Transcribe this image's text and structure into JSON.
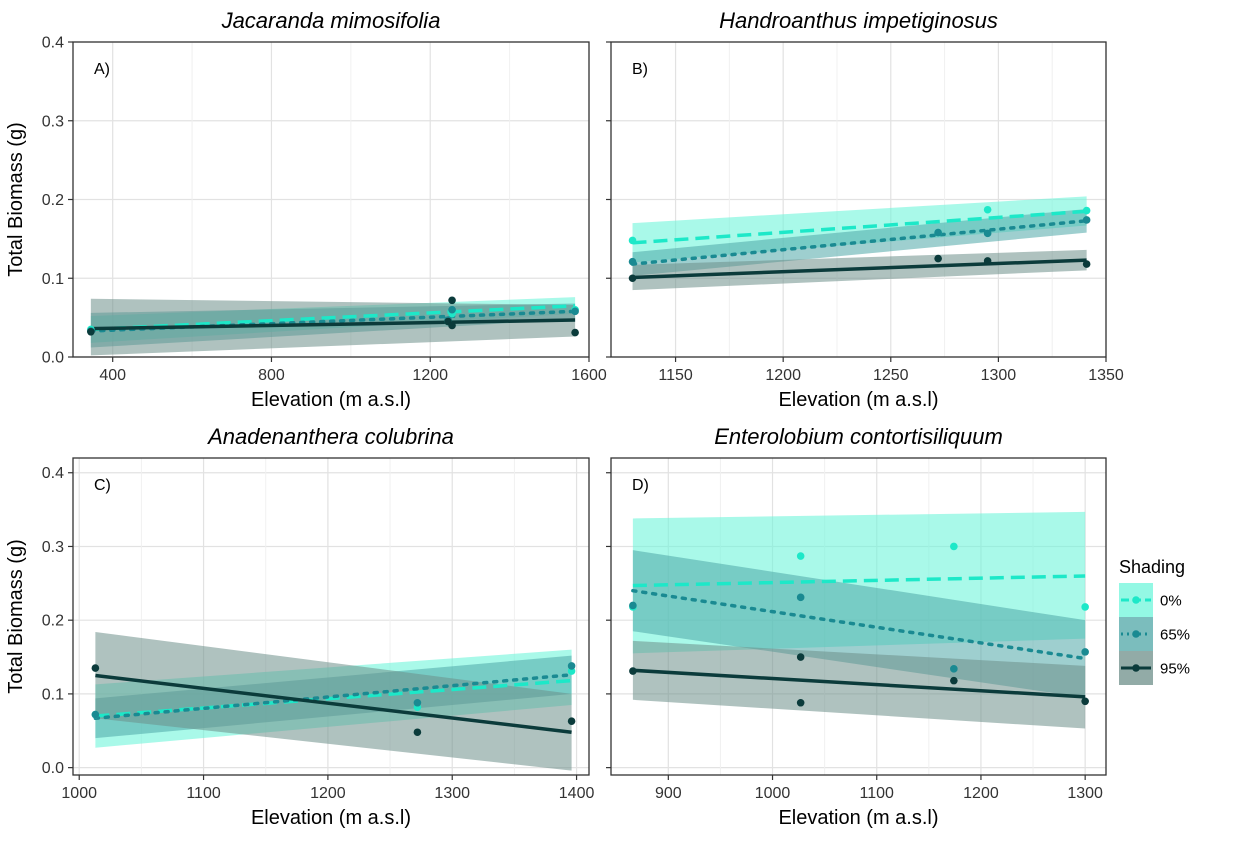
{
  "chart_data": [
    {
      "type": "line",
      "panel_label": "A)",
      "title": "Jacaranda mimosifolia",
      "xlabel": "Elevation (m a.s.l)",
      "ylabel": "Total Biomass (g)",
      "xlim": [
        300,
        1600
      ],
      "ylim": [
        0,
        0.4
      ],
      "xticks": [
        400,
        800,
        1200,
        1600
      ],
      "yticks": [
        0.0,
        0.1,
        0.2,
        0.3,
        0.4
      ],
      "ytick_labels": [
        "0.0",
        "0.1",
        "0.2",
        "0.3",
        "0.4"
      ],
      "show_y_tick_labels": true,
      "grid": true,
      "series": [
        {
          "name": "0%",
          "points": [
            [
              345,
              0.035
            ],
            [
              1245,
              0.045
            ],
            [
              1255,
              0.055
            ],
            [
              1565,
              0.06
            ]
          ],
          "fit": {
            "x": [
              345,
              1565
            ],
            "y": [
              0.035,
              0.065
            ]
          },
          "band": {
            "lower": [
              0.018,
              0.055
            ],
            "upper": [
              0.052,
              0.076
            ]
          }
        },
        {
          "name": "65%",
          "points": [
            [
              345,
              0.033
            ],
            [
              1245,
              0.047
            ],
            [
              1255,
              0.06
            ],
            [
              1565,
              0.058
            ]
          ],
          "fit": {
            "x": [
              345,
              1565
            ],
            "y": [
              0.033,
              0.058
            ]
          },
          "band": {
            "lower": [
              0.012,
              0.048
            ],
            "upper": [
              0.056,
              0.068
            ]
          }
        },
        {
          "name": "95%",
          "points": [
            [
              345,
              0.032
            ],
            [
              1245,
              0.045
            ],
            [
              1255,
              0.072
            ],
            [
              1255,
              0.04
            ],
            [
              1565,
              0.031
            ]
          ],
          "fit": {
            "x": [
              345,
              1565
            ],
            "y": [
              0.036,
              0.047
            ]
          },
          "band": {
            "lower": [
              0.002,
              0.026
            ],
            "upper": [
              0.074,
              0.066
            ]
          }
        }
      ]
    },
    {
      "type": "line",
      "panel_label": "B)",
      "title": "Handroanthus impetiginosus",
      "xlabel": "Elevation (m a.s.l)",
      "ylabel": "",
      "xlim": [
        1120,
        1350
      ],
      "ylim": [
        0,
        0.4
      ],
      "xticks": [
        1150,
        1200,
        1250,
        1300,
        1350
      ],
      "yticks": [
        0.0,
        0.1,
        0.2,
        0.3,
        0.4
      ],
      "ytick_labels": [
        "0.0",
        "0.1",
        "0.2",
        "0.3",
        "0.4"
      ],
      "show_y_tick_labels": false,
      "grid": true,
      "series": [
        {
          "name": "0%",
          "points": [
            [
              1130,
              0.148
            ],
            [
              1272,
              0.158
            ],
            [
              1295,
              0.187
            ],
            [
              1341,
              0.186
            ]
          ],
          "fit": {
            "x": [
              1130,
              1341
            ],
            "y": [
              0.145,
              0.185
            ]
          },
          "band": {
            "lower": [
              0.12,
              0.167
            ],
            "upper": [
              0.17,
              0.204
            ]
          }
        },
        {
          "name": "65%",
          "points": [
            [
              1130,
              0.121
            ],
            [
              1272,
              0.158
            ],
            [
              1295,
              0.157
            ],
            [
              1341,
              0.174
            ]
          ],
          "fit": {
            "x": [
              1130,
              1341
            ],
            "y": [
              0.118,
              0.173
            ]
          },
          "band": {
            "lower": [
              0.103,
              0.158
            ],
            "upper": [
              0.133,
              0.188
            ]
          }
        },
        {
          "name": "95%",
          "points": [
            [
              1130,
              0.1
            ],
            [
              1272,
              0.125
            ],
            [
              1295,
              0.122
            ],
            [
              1341,
              0.118
            ]
          ],
          "fit": {
            "x": [
              1130,
              1341
            ],
            "y": [
              0.101,
              0.123
            ]
          },
          "band": {
            "lower": [
              0.085,
              0.11
            ],
            "upper": [
              0.117,
              0.136
            ]
          }
        }
      ]
    },
    {
      "type": "line",
      "panel_label": "C)",
      "title": "Anadenanthera colubrina",
      "xlabel": "Elevation (m a.s.l)",
      "ylabel": "Total Biomass (g)",
      "xlim": [
        995,
        1410
      ],
      "ylim": [
        -0.01,
        0.42
      ],
      "xticks": [
        1000,
        1100,
        1200,
        1300,
        1400
      ],
      "yticks": [
        0.0,
        0.1,
        0.2,
        0.3,
        0.4
      ],
      "ytick_labels": [
        "0.0",
        "0.1",
        "0.2",
        "0.3",
        "0.4"
      ],
      "show_y_tick_labels": true,
      "grid": true,
      "series": [
        {
          "name": "0%",
          "points": [
            [
              1013,
              0.072
            ],
            [
              1272,
              0.082
            ],
            [
              1396,
              0.131
            ]
          ],
          "fit": {
            "x": [
              1013,
              1396
            ],
            "y": [
              0.07,
              0.118
            ]
          },
          "band": {
            "lower": [
              0.027,
              0.085
            ],
            "upper": [
              0.113,
              0.16
            ]
          }
        },
        {
          "name": "65%",
          "points": [
            [
              1013,
              0.072
            ],
            [
              1272,
              0.088
            ],
            [
              1396,
              0.138
            ]
          ],
          "fit": {
            "x": [
              1013,
              1396
            ],
            "y": [
              0.067,
              0.126
            ]
          },
          "band": {
            "lower": [
              0.04,
              0.1
            ],
            "upper": [
              0.094,
              0.152
            ]
          }
        },
        {
          "name": "95%",
          "points": [
            [
              1013,
              0.135
            ],
            [
              1272,
              0.048
            ],
            [
              1396,
              0.063
            ]
          ],
          "fit": {
            "x": [
              1013,
              1396
            ],
            "y": [
              0.125,
              0.048
            ]
          },
          "band": {
            "lower": [
              0.067,
              -0.004
            ],
            "upper": [
              0.184,
              0.1
            ]
          }
        }
      ]
    },
    {
      "type": "line",
      "panel_label": "D)",
      "title": "Enterolobium contortisiliquum",
      "xlabel": "Elevation (m a.s.l)",
      "ylabel": "",
      "xlim": [
        845,
        1320
      ],
      "ylim": [
        -0.01,
        0.42
      ],
      "xticks": [
        900,
        1000,
        1100,
        1200,
        1300
      ],
      "yticks": [
        0.0,
        0.1,
        0.2,
        0.3,
        0.4
      ],
      "ytick_labels": [
        "0.0",
        "0.1",
        "0.2",
        "0.3",
        "0.4"
      ],
      "show_y_tick_labels": false,
      "grid": true,
      "series": [
        {
          "name": "0%",
          "points": [
            [
              866,
              0.218
            ],
            [
              1027,
              0.287
            ],
            [
              1174,
              0.3
            ],
            [
              1300,
              0.218
            ]
          ],
          "fit": {
            "x": [
              866,
              1300
            ],
            "y": [
              0.247,
              0.26
            ]
          },
          "band": {
            "lower": [
              0.155,
              0.175
            ],
            "upper": [
              0.338,
              0.347
            ]
          }
        },
        {
          "name": "65%",
          "points": [
            [
              866,
              0.22
            ],
            [
              1027,
              0.231
            ],
            [
              1174,
              0.134
            ],
            [
              1300,
              0.157
            ]
          ],
          "fit": {
            "x": [
              866,
              1300
            ],
            "y": [
              0.24,
              0.148
            ]
          },
          "band": {
            "lower": [
              0.185,
              0.095
            ],
            "upper": [
              0.295,
              0.2
            ]
          }
        },
        {
          "name": "95%",
          "points": [
            [
              866,
              0.131
            ],
            [
              1027,
              0.15
            ],
            [
              1027,
              0.088
            ],
            [
              1174,
              0.118
            ],
            [
              1300,
              0.09
            ]
          ],
          "fit": {
            "x": [
              866,
              1300
            ],
            "y": [
              0.132,
              0.096
            ]
          },
          "band": {
            "lower": [
              0.092,
              0.053
            ],
            "upper": [
              0.172,
              0.138
            ]
          }
        }
      ]
    }
  ],
  "legend": {
    "title": "Shading",
    "placement": "right",
    "items": [
      {
        "label": "0%",
        "line": "#1de8c8",
        "dash": "dashed",
        "band": "#6ff5db"
      },
      {
        "label": "65%",
        "line": "#1a8a92",
        "dash": "dotted",
        "band": "#4fa7a7"
      },
      {
        "label": "95%",
        "line": "#0b3b3b",
        "dash": "solid",
        "band": "#6e8f8a"
      }
    ]
  },
  "colors": {
    "zero": "#1de8c8",
    "zero_band": "#6ff5db",
    "sixtyfive": "#1a8a92",
    "sixtyfive_band": "#4fa7a7",
    "ninetyfive": "#0b3b3b",
    "ninetyfive_band": "#6e8f8a",
    "grid": "#e2e2e2",
    "panel_border": "#333333"
  }
}
